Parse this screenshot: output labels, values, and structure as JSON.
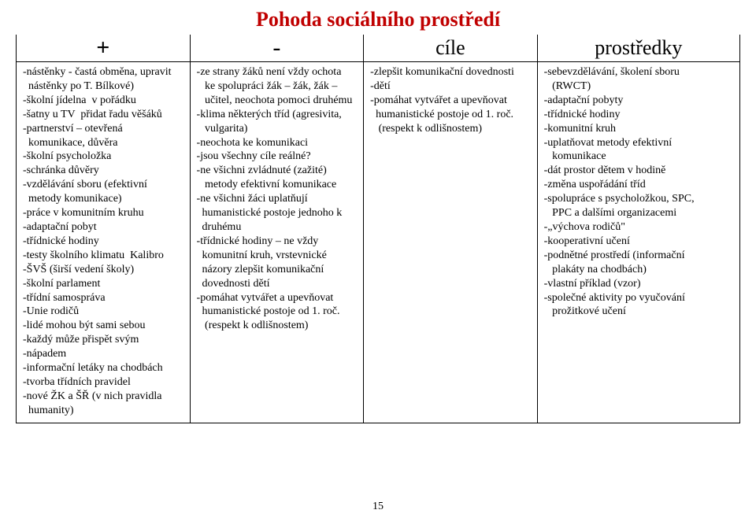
{
  "title": "Pohoda sociálního prostředí",
  "title_color": "#c00000",
  "page_number": "15",
  "background_color": "#ffffff",
  "text_color": "#000000",
  "border_color": "#000000",
  "columns": [
    {
      "header": "+",
      "header_style": "plus"
    },
    {
      "header": "-",
      "header_style": "minus"
    },
    {
      "header": "cíle",
      "header_style": "word"
    },
    {
      "header": "prostředky",
      "header_style": "word"
    }
  ],
  "cells": [
    "-nástěnky - častá obměna, upravit\n  nástěnky po T. Bílkové)\n-školní jídelna  v pořádku\n-šatny u TV  přidat řadu věšáků\n-partnerství – otevřená\n  komunikace, důvěra\n-školní psycholožka\n-schránka důvěry\n-vzdělávání sboru (efektivní\n  metody komunikace)\n-práce v komunitním kruhu\n-adaptační pobyt\n-třídnické hodiny\n-testy školního klimatu  Kalibro\n-ŠVŠ (širší vedení školy)\n-školní parlament\n-třídní samospráva\n-Unie rodičů\n-lidé mohou být sami sebou\n-každý může přispět svým\n-nápadem\n-informační letáky na chodbách\n-tvorba třídních pravidel\n-nové ŽK a ŠŘ (v nich pravidla\n  humanity)",
    "-ze strany žáků není vždy ochota\n   ke spolupráci žák – žák, žák –\n   učitel, neochota pomoci druhému\n-klima některých tříd (agresivita,\n   vulgarita)\n-neochota ke komunikaci\n-jsou všechny cíle reálné?\n-ne všichni zvládnuté (zažité)\n   metody efektivní komunikace\n-ne všichni žáci uplatňují\n  humanistické postoje jednoho k\n  druhému\n-třídnické hodiny – ne vždy\n  komunitní kruh, vrstevnické\n  názory zlepšit komunikační\n  dovednosti dětí\n-pomáhat vytvářet a upevňovat\n  humanistické postoje od 1. roč.\n   (respekt k odlišnostem)",
    "-zlepšit komunikační dovednosti\n-dětí\n-pomáhat vytvářet a upevňovat\n  humanistické postoje od 1. roč.\n   (respekt k odlišnostem)",
    "-sebevzdělávání, školení sboru\n   (RWCT)\n-adaptační pobyty\n-třídnické hodiny\n-komunitní kruh\n-uplatňovat metody efektivní\n   komunikace\n-dát prostor dětem v hodině\n-změna uspořádání tříd\n-spolupráce s psycholožkou, SPC,\n   PPC a dalšími organizacemi\n-„výchova rodičů\"\n-kooperativní učení\n-podnětné prostředí (informační\n   plakáty na chodbách)\n-vlastní příklad (vzor)\n-společné aktivity po vyučování\n   prožitkové učení"
  ]
}
